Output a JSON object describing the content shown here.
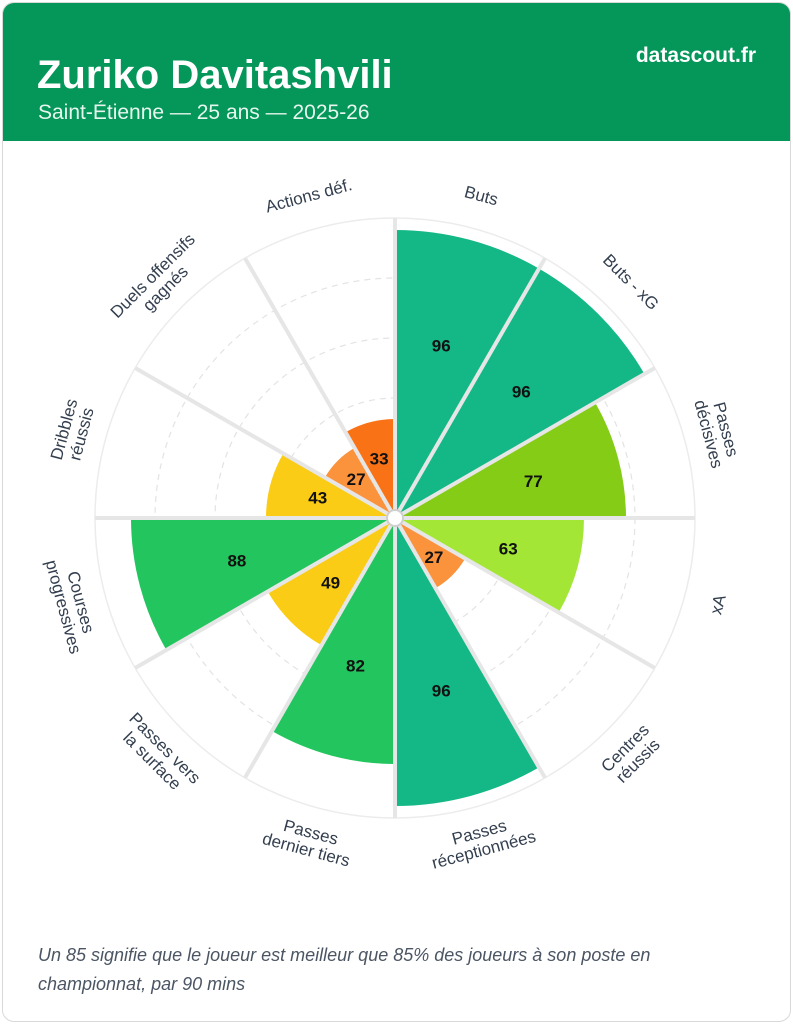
{
  "header": {
    "player_name": "Zuriko Davitashvili",
    "subtitle": "Saint-Étienne — 25 ans — 2025-26",
    "brand": "datascout.fr",
    "brand_color": "#05965a"
  },
  "chart_data": {
    "type": "polar-bar",
    "scale_max": 100,
    "grid_levels": [
      20,
      40,
      60,
      80
    ],
    "metrics": [
      {
        "label": "Buts",
        "value": 96
      },
      {
        "label": "Buts - xG",
        "value": 96
      },
      {
        "label": "Passes décisives",
        "value": 77
      },
      {
        "label": "xA",
        "value": 63
      },
      {
        "label": "Centres réussis",
        "value": 27
      },
      {
        "label": "Passes réceptionnées",
        "value": 96
      },
      {
        "label": "Passes dernier tiers",
        "value": 82
      },
      {
        "label": "Passes vers la surface",
        "value": 49
      },
      {
        "label": "Courses progressives",
        "value": 88
      },
      {
        "label": "Dribbles réussis",
        "value": 43
      },
      {
        "label": "Duels offensifs gagnés",
        "value": 27
      },
      {
        "label": "Actions déf.",
        "value": 33
      }
    ],
    "color_scale": [
      {
        "min": 90,
        "color": "#14b886"
      },
      {
        "min": 80,
        "color": "#22c55e"
      },
      {
        "min": 70,
        "color": "#84cc16"
      },
      {
        "min": 60,
        "color": "#a3e635"
      },
      {
        "min": 40,
        "color": "#facc15"
      },
      {
        "min": 30,
        "color": "#f97316"
      },
      {
        "min": 0,
        "color": "#fb923c"
      }
    ]
  },
  "footnote": "Un 85 signifie que le joueur est meilleur que 85% des joueurs à son poste en championnat, par 90 mins"
}
